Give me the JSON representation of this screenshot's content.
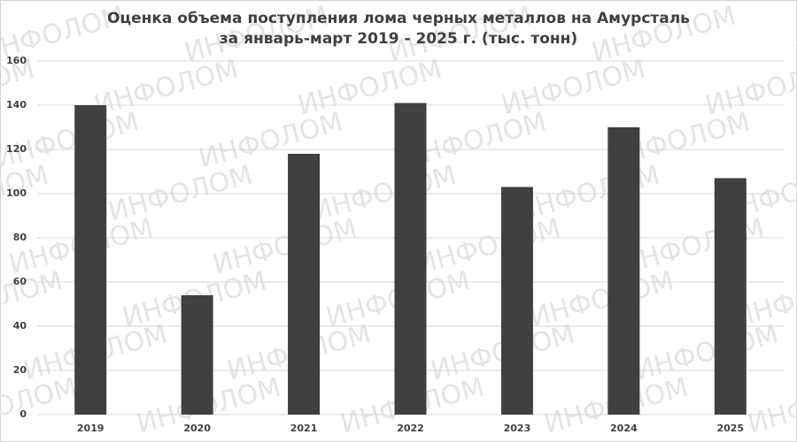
{
  "chart_data": {
    "type": "bar",
    "title": "Оценка объема поступления лома черных металлов на Амурсталь",
    "subtitle": "за январь-март 2019 - 2025 г. (тыс. тонн)",
    "watermark": "ИНФОЛОМ",
    "categories": [
      "2019",
      "2020",
      "2021",
      "2022",
      "2023",
      "2024",
      "2025"
    ],
    "values": [
      140,
      54,
      118,
      141,
      103,
      130,
      107
    ],
    "color": "#404040",
    "ylim": [
      0,
      160
    ],
    "yticks": [
      0,
      20,
      40,
      60,
      80,
      100,
      120,
      140,
      160
    ],
    "grid": true
  }
}
